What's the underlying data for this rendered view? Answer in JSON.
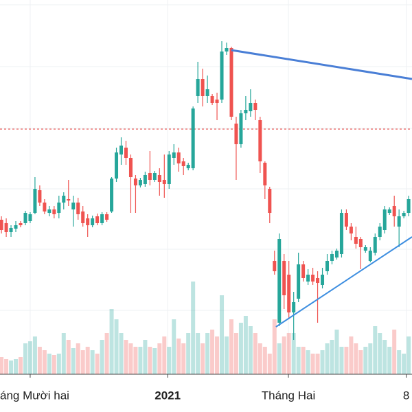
{
  "chart_data": {
    "type": "candlestick",
    "categories": [
      null,
      null,
      null,
      null,
      null,
      null,
      null,
      null,
      null,
      null,
      null,
      null,
      null,
      null,
      null,
      null,
      null,
      null,
      null,
      null,
      null,
      null,
      null,
      null,
      null,
      null,
      null,
      null,
      null,
      null,
      null,
      null,
      null,
      null,
      null,
      null,
      null,
      null,
      null,
      null,
      null,
      null,
      null,
      null,
      null,
      null,
      null,
      null,
      null,
      null,
      null,
      null,
      null,
      null,
      null,
      null,
      null,
      null,
      null,
      null,
      null,
      null,
      null,
      null,
      null,
      null,
      null,
      null,
      null,
      null,
      null,
      null,
      null,
      null,
      null,
      null,
      null,
      null,
      null,
      null,
      null,
      null,
      null,
      null,
      null,
      null
    ],
    "ohlc": [
      [
        225,
        230,
        205,
        210
      ],
      [
        220,
        227,
        200,
        207
      ],
      [
        207,
        217,
        200,
        213
      ],
      [
        212,
        223,
        207,
        217
      ],
      [
        220,
        223,
        214,
        217
      ],
      [
        220,
        238,
        217,
        235
      ],
      [
        223,
        236,
        220,
        233
      ],
      [
        235,
        287,
        233,
        270
      ],
      [
        268,
        275,
        245,
        250
      ],
      [
        250,
        255,
        233,
        237
      ],
      [
        235,
        245,
        230,
        240
      ],
      [
        240,
        245,
        227,
        233
      ],
      [
        235,
        260,
        227,
        250
      ],
      [
        250,
        265,
        240,
        260
      ],
      [
        255,
        283,
        245,
        253
      ],
      [
        240,
        260,
        215,
        250
      ],
      [
        250,
        257,
        225,
        233
      ],
      [
        237,
        245,
        215,
        220
      ],
      [
        227,
        233,
        200,
        217
      ],
      [
        217,
        231,
        214,
        227
      ],
      [
        230,
        234,
        217,
        220
      ],
      [
        220,
        236,
        217,
        233
      ],
      [
        233,
        236,
        222,
        225
      ],
      [
        237,
        287,
        235,
        285
      ],
      [
        285,
        330,
        280,
        323
      ],
      [
        320,
        345,
        305,
        333
      ],
      [
        330,
        340,
        305,
        315
      ],
      [
        315,
        320,
        235,
        287
      ],
      [
        285,
        290,
        235,
        275
      ],
      [
        275,
        286,
        272,
        283
      ],
      [
        277,
        295,
        273,
        290
      ],
      [
        293,
        325,
        275,
        283
      ],
      [
        283,
        296,
        280,
        293
      ],
      [
        290,
        300,
        260,
        280
      ],
      [
        283,
        320,
        257,
        277
      ],
      [
        277,
        325,
        270,
        320
      ],
      [
        315,
        335,
        305,
        323
      ],
      [
        323,
        330,
        295,
        307
      ],
      [
        310,
        315,
        290,
        303
      ],
      [
        300,
        308,
        297,
        305
      ],
      [
        300,
        390,
        297,
        387
      ],
      [
        405,
        455,
        395,
        430
      ],
      [
        430,
        445,
        390,
        405
      ],
      [
        405,
        435,
        395,
        415
      ],
      [
        405,
        408,
        392,
        395
      ],
      [
        400,
        410,
        370,
        395
      ],
      [
        400,
        485,
        395,
        470
      ],
      [
        470,
        483,
        465,
        475
      ],
      [
        475,
        477,
        370,
        375
      ],
      [
        365,
        375,
        283,
        335
      ],
      [
        335,
        385,
        330,
        380
      ],
      [
        380,
        405,
        370,
        385
      ],
      [
        383,
        415,
        375,
        395
      ],
      [
        395,
        400,
        370,
        385
      ],
      [
        370,
        375,
        293,
        310
      ],
      [
        308,
        310,
        255,
        275
      ],
      [
        270,
        273,
        220,
        235
      ],
      [
        165,
        180,
        145,
        150
      ],
      [
        75,
        205,
        70,
        197
      ],
      [
        165,
        175,
        95,
        115
      ],
      [
        145,
        165,
        80,
        90
      ],
      [
        90,
        120,
        50,
        105
      ],
      [
        110,
        177,
        105,
        160
      ],
      [
        160,
        165,
        135,
        140
      ],
      [
        135,
        153,
        130,
        145
      ],
      [
        145,
        155,
        130,
        135
      ],
      [
        140,
        150,
        75,
        133
      ],
      [
        130,
        155,
        125,
        145
      ],
      [
        150,
        175,
        145,
        165
      ],
      [
        165,
        180,
        160,
        175
      ],
      [
        170,
        183,
        167,
        180
      ],
      [
        175,
        240,
        170,
        235
      ],
      [
        235,
        240,
        210,
        215
      ],
      [
        215,
        220,
        195,
        205
      ],
      [
        200,
        215,
        183,
        190
      ],
      [
        197,
        200,
        153,
        185
      ],
      [
        180,
        188,
        177,
        185
      ],
      [
        165,
        185,
        163,
        180
      ],
      [
        177,
        205,
        173,
        200
      ],
      [
        200,
        220,
        195,
        215
      ],
      [
        210,
        245,
        205,
        240
      ],
      [
        235,
        243,
        232,
        240
      ],
      [
        245,
        260,
        215,
        230
      ],
      [
        215,
        240,
        185,
        230
      ],
      [
        230,
        238,
        227,
        235
      ],
      [
        235,
        260,
        230,
        255
      ]
    ],
    "volume": [
      25,
      22,
      20,
      22,
      25,
      45,
      48,
      55,
      40,
      35,
      30,
      28,
      30,
      60,
      50,
      38,
      45,
      35,
      40,
      35,
      30,
      50,
      60,
      95,
      80,
      60,
      50,
      45,
      40,
      40,
      50,
      40,
      38,
      45,
      55,
      40,
      80,
      52,
      45,
      60,
      135,
      60,
      45,
      60,
      65,
      55,
      115,
      55,
      80,
      60,
      75,
      85,
      70,
      60,
      45,
      40,
      30,
      80,
      45,
      55,
      60,
      60,
      40,
      40,
      35,
      30,
      30,
      35,
      45,
      50,
      65,
      40,
      40,
      55,
      45,
      35,
      40,
      45,
      70,
      60,
      50,
      40,
      65,
      35,
      30,
      55
    ],
    "up_color": "#26a69a",
    "down_color": "#ef5350",
    "ylim": [
      0,
      545
    ],
    "y2lim": [
      0,
      545
    ],
    "ygrid": [
      538,
      448,
      358,
      270,
      182,
      93
    ],
    "xlim": [
      -0.3,
      85.7
    ],
    "xticks": [
      {
        "value": 6,
        "label": "áng Mười hai"
      },
      {
        "value": 34.7,
        "label": "2021"
      },
      {
        "value": 59.9,
        "label": "Tháng Hai"
      },
      {
        "value": 84.5,
        "label": "8"
      }
    ],
    "hline": {
      "value": 357,
      "color": "#e53935"
    },
    "trendlines": [
      {
        "x": [
          48,
          85.7
        ],
        "y": [
          472,
          430
        ],
        "color": "#4a7fd6"
      },
      {
        "x": [
          57.3,
          85.7
        ],
        "y": [
          69,
          200
        ],
        "color": "#3d8ee0"
      }
    ]
  }
}
